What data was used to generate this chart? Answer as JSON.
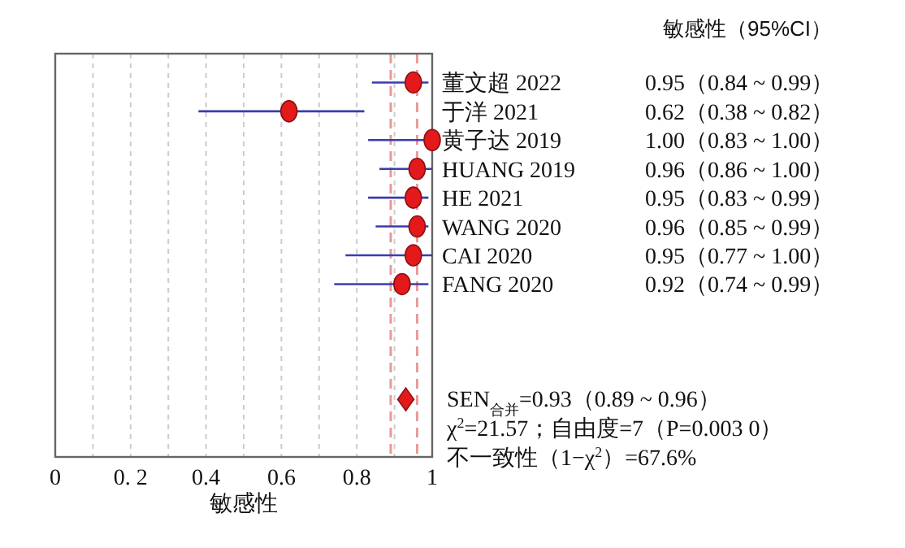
{
  "chart_data": {
    "type": "scatter",
    "orientation": "horizontal",
    "xlabel": "敏感性",
    "categories": [
      "董文超 2022",
      "于洋 2021",
      "黄子达 2019",
      "HUANG 2019",
      "HE 2021",
      "WANG 2020",
      "CAI 2020",
      "FANG 2020",
      null,
      null,
      null,
      null
    ],
    "xlim": [
      0,
      1
    ],
    "xticks": [
      0,
      {
        "value": 0.1,
        "label": null
      },
      {
        "value": 0.2,
        "label": "0. 2"
      },
      {
        "value": 0.3,
        "label": null
      },
      0.4,
      {
        "value": 0.5,
        "label": null
      },
      0.6,
      {
        "value": 0.7,
        "label": null
      },
      0.8,
      {
        "value": 0.9,
        "label": null
      },
      1
    ],
    "grid": "x",
    "series": [
      {
        "color": "#e3191c",
        "marker": "circle",
        "values": [
          0.95,
          0.62,
          1.0,
          0.96,
          0.95,
          0.96,
          0.95,
          0.92,
          null,
          null,
          null,
          null
        ],
        "errors": [
          [
            0.84,
            0.99
          ],
          [
            0.38,
            0.82
          ],
          [
            0.83,
            1.0
          ],
          [
            0.86,
            1.0
          ],
          [
            0.83,
            0.99
          ],
          [
            0.85,
            0.99
          ],
          [
            0.77,
            1.0
          ],
          [
            0.74,
            0.99
          ],
          null,
          null,
          null,
          null
        ],
        "value_labels": [
          "0.95（0.84 ~ 0.99）",
          "0.62（0.38 ~ 0.82）",
          "1.00（0.83 ~ 1.00）",
          "0.96（0.86 ~ 1.00）",
          "0.95（0.83 ~ 0.99）",
          "0.96（0.85 ~ 0.99）",
          "0.95（0.77 ~ 1.00）",
          "0.92（0.74 ~ 0.99）",
          null,
          null,
          null,
          null
        ]
      },
      {
        "color": "#e3191c",
        "marker": "diamond",
        "values": [
          null,
          null,
          null,
          null,
          null,
          null,
          null,
          null,
          null,
          null,
          null,
          0.93
        ]
      }
    ],
    "ref_lines": [
      {
        "axis": "x",
        "value": 0.89,
        "color": "#e89a9a",
        "line_style": "dashed"
      },
      {
        "axis": "x",
        "value": 0.96,
        "color": "#e89a9a",
        "line_style": "dashed"
      }
    ],
    "annotations": [
      "敏感性（95%CI）",
      "SEN$_{合并}$=0.93（0.89 ~ 0.96）",
      "χ$^{2}$=21.57；自由度=7（P=0.003 0）",
      "不一致性（1−χ$^{2}$）=67.6%"
    ]
  }
}
